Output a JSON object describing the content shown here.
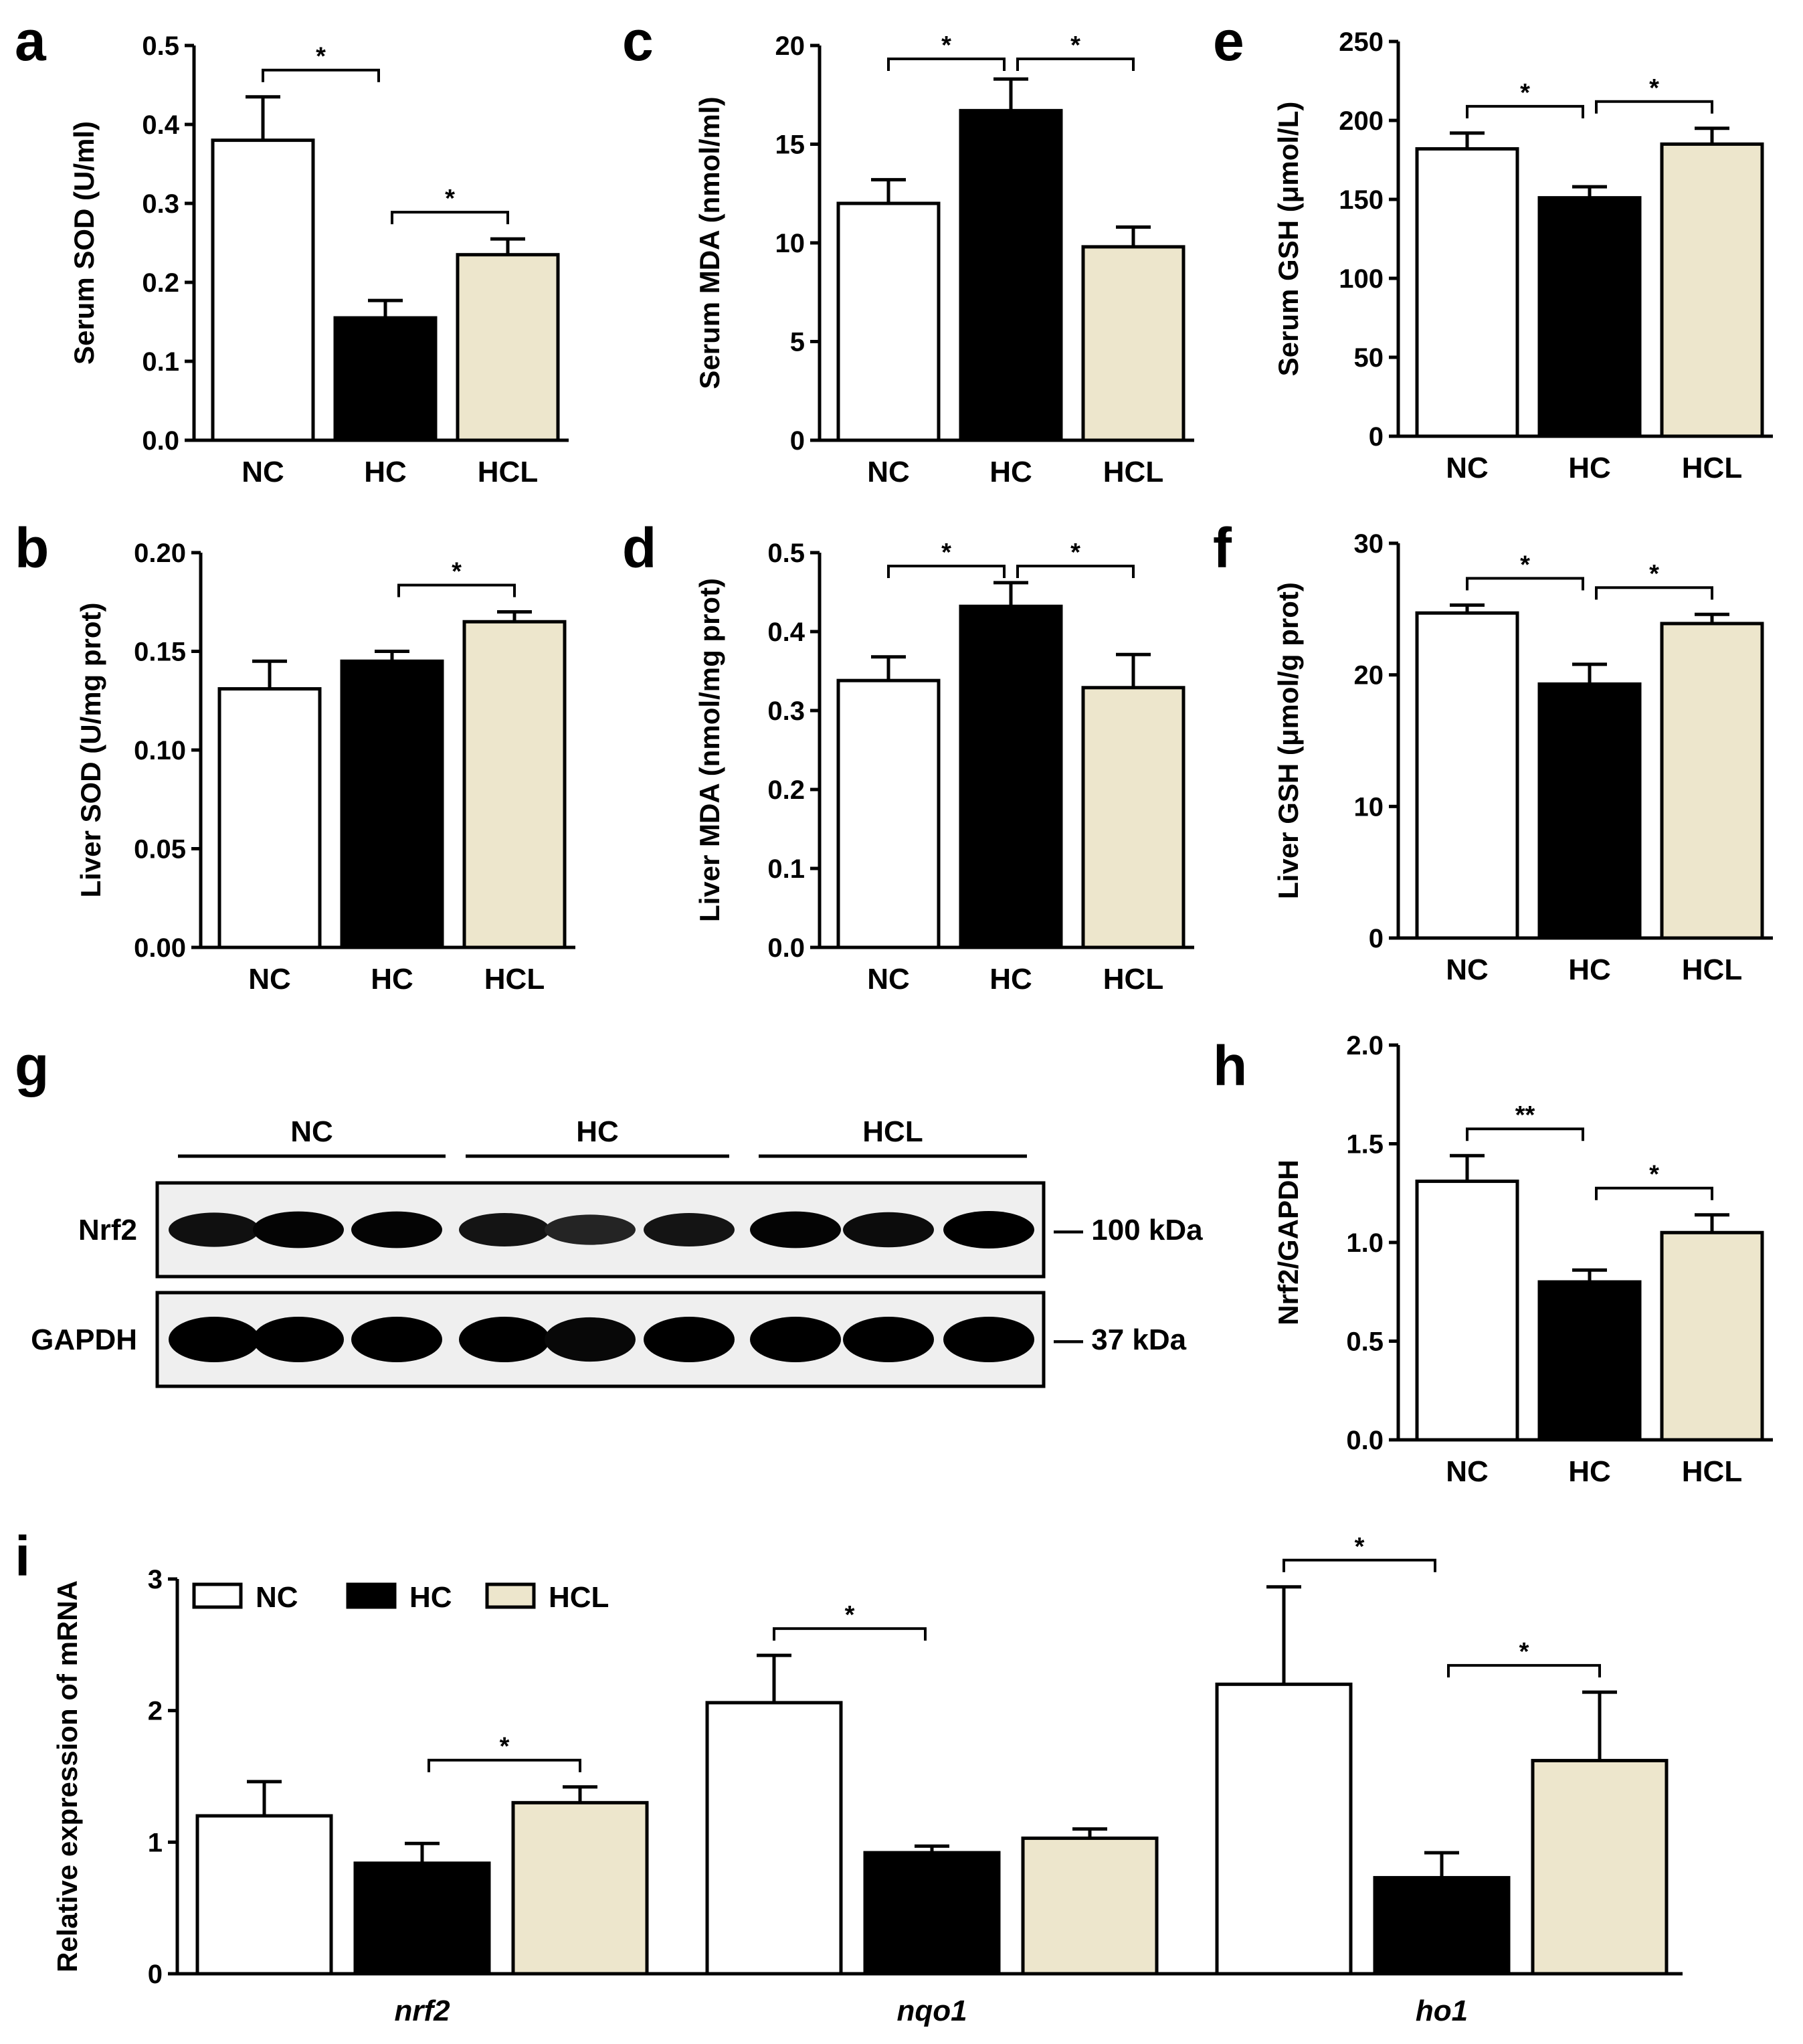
{
  "colors": {
    "NC": "#ffffff",
    "HC": "#000000",
    "HCL": "#ede6cc",
    "stroke": "#000000"
  },
  "chart_data": [
    {
      "id": "a",
      "type": "bar",
      "letter": "a",
      "ylabel": "Serum SOD (U/ml)",
      "categories": [
        "NC",
        "HC",
        "HCL"
      ],
      "values": [
        0.38,
        0.155,
        0.235
      ],
      "errors": [
        0.055,
        0.022,
        0.02
      ],
      "ylim": [
        0,
        0.5
      ],
      "ticks": [
        0.0,
        0.1,
        0.2,
        0.3,
        0.4,
        0.5
      ],
      "tick_labels": [
        "0.0",
        "0.1",
        "0.2",
        "0.3",
        "0.4",
        "0.5"
      ],
      "sig": [
        {
          "from": 0,
          "to": 1,
          "label": "*"
        },
        {
          "from": 1,
          "to": 2,
          "label": "*"
        }
      ]
    },
    {
      "id": "c",
      "type": "bar",
      "letter": "c",
      "ylabel": "Serum MDA (nmol/ml)",
      "categories": [
        "NC",
        "HC",
        "HCL"
      ],
      "values": [
        12.0,
        16.7,
        9.8
      ],
      "errors": [
        1.2,
        1.6,
        1.0
      ],
      "ylim": [
        0,
        20
      ],
      "ticks": [
        0,
        5,
        10,
        15,
        20
      ],
      "tick_labels": [
        "0",
        "5",
        "10",
        "15",
        "20"
      ],
      "sig": [
        {
          "from": 0,
          "to": 1,
          "label": "*"
        },
        {
          "from": 1,
          "to": 2,
          "label": "*"
        }
      ]
    },
    {
      "id": "e",
      "type": "bar",
      "letter": "e",
      "ylabel": "Serum GSH (μmol/L)",
      "categories": [
        "NC",
        "HC",
        "HCL"
      ],
      "values": [
        182,
        151,
        185
      ],
      "errors": [
        10,
        7,
        10
      ],
      "ylim": [
        0,
        250
      ],
      "ticks": [
        0,
        50,
        100,
        150,
        200,
        250
      ],
      "tick_labels": [
        "0",
        "50",
        "100",
        "150",
        "200",
        "250"
      ],
      "sig": [
        {
          "from": 0,
          "to": 1,
          "label": "*"
        },
        {
          "from": 1,
          "to": 2,
          "label": "*"
        }
      ]
    },
    {
      "id": "b",
      "type": "bar",
      "letter": "b",
      "ylabel": "Liver SOD (U/mg prot)",
      "categories": [
        "NC",
        "HC",
        "HCL"
      ],
      "values": [
        0.131,
        0.145,
        0.165
      ],
      "errors": [
        0.014,
        0.005,
        0.005
      ],
      "ylim": [
        0,
        0.2
      ],
      "ticks": [
        0.0,
        0.05,
        0.1,
        0.15,
        0.2
      ],
      "tick_labels": [
        "0.00",
        "0.05",
        "0.10",
        "0.15",
        "0.20"
      ],
      "sig": [
        {
          "from": 1,
          "to": 2,
          "label": "*"
        }
      ]
    },
    {
      "id": "d",
      "type": "bar",
      "letter": "d",
      "ylabel": "Liver MDA (nmol/mg prot)",
      "categories": [
        "NC",
        "HC",
        "HCL"
      ],
      "values": [
        0.338,
        0.432,
        0.329
      ],
      "errors": [
        0.03,
        0.03,
        0.042
      ],
      "ylim": [
        0,
        0.5
      ],
      "ticks": [
        0.0,
        0.1,
        0.2,
        0.3,
        0.4,
        0.5
      ],
      "tick_labels": [
        "0.0",
        "0.1",
        "0.2",
        "0.3",
        "0.4",
        "0.5"
      ],
      "sig": [
        {
          "from": 0,
          "to": 1,
          "label": "*"
        },
        {
          "from": 1,
          "to": 2,
          "label": "*"
        }
      ]
    },
    {
      "id": "f",
      "type": "bar",
      "letter": "f",
      "ylabel": "Liver GSH  (μmol/g prot)",
      "categories": [
        "NC",
        "HC",
        "HCL"
      ],
      "values": [
        24.7,
        19.3,
        23.9
      ],
      "errors": [
        0.6,
        1.5,
        0.7
      ],
      "ylim": [
        0,
        30
      ],
      "ticks": [
        0,
        10,
        20,
        30
      ],
      "tick_labels": [
        "0",
        "10",
        "20",
        "30"
      ],
      "sig": [
        {
          "from": 0,
          "to": 1,
          "label": "*"
        },
        {
          "from": 1,
          "to": 2,
          "label": "*"
        }
      ]
    },
    {
      "id": "h",
      "type": "bar",
      "letter": "h",
      "ylabel": "Nrf2/GAPDH",
      "categories": [
        "NC",
        "HC",
        "HCL"
      ],
      "values": [
        1.31,
        0.8,
        1.05
      ],
      "errors": [
        0.13,
        0.06,
        0.09
      ],
      "ylim": [
        0,
        2.0
      ],
      "ticks": [
        0.0,
        0.5,
        1.0,
        1.5,
        2.0
      ],
      "tick_labels": [
        "0.0",
        "0.5",
        "1.0",
        "1.5",
        "2.0"
      ],
      "sig": [
        {
          "from": 0,
          "to": 1,
          "label": "**"
        },
        {
          "from": 1,
          "to": 2,
          "label": "*"
        }
      ]
    },
    {
      "id": "i",
      "type": "grouped-bar",
      "letter": "i",
      "ylabel": "Relative expression of mRNA",
      "categories": [
        "nrf2",
        "nqo1",
        "ho1"
      ],
      "series": [
        {
          "name": "NC",
          "values": [
            1.2,
            2.06,
            2.2
          ],
          "errors": [
            0.26,
            0.36,
            0.74
          ]
        },
        {
          "name": "HC",
          "values": [
            0.84,
            0.92,
            0.73
          ],
          "errors": [
            0.15,
            0.05,
            0.19
          ]
        },
        {
          "name": "HCL",
          "values": [
            1.3,
            1.03,
            1.62
          ],
          "errors": [
            0.12,
            0.07,
            0.52
          ]
        }
      ],
      "ylim": [
        0,
        3
      ],
      "ticks": [
        0,
        1,
        2,
        3
      ],
      "tick_labels": [
        "0",
        "1",
        "2",
        "3"
      ],
      "legend": [
        "NC",
        "HC",
        "HCL"
      ],
      "sig": [
        {
          "group": 0,
          "from": 1,
          "to": 2,
          "label": "*"
        },
        {
          "group": 1,
          "from": 0,
          "to": 1,
          "label": "*"
        },
        {
          "group": 2,
          "from": 0,
          "to": 1,
          "label": "*"
        },
        {
          "group": 2,
          "from": 1,
          "to": 2,
          "label": "*"
        }
      ]
    }
  ],
  "western_blot": {
    "letter": "g",
    "groups": [
      "NC",
      "HC",
      "HCL"
    ],
    "rows": [
      {
        "label": "Nrf2",
        "marker": "— 100 kDa",
        "intensity": [
          0.8,
          0.95,
          0.95,
          0.75,
          0.55,
          0.75,
          0.95,
          0.85,
          1.0
        ]
      },
      {
        "label": "GAPDH",
        "marker": "— 37 kDa",
        "intensity": [
          1.0,
          1.0,
          1.0,
          1.0,
          0.9,
          1.0,
          1.0,
          1.0,
          1.0
        ]
      }
    ]
  }
}
